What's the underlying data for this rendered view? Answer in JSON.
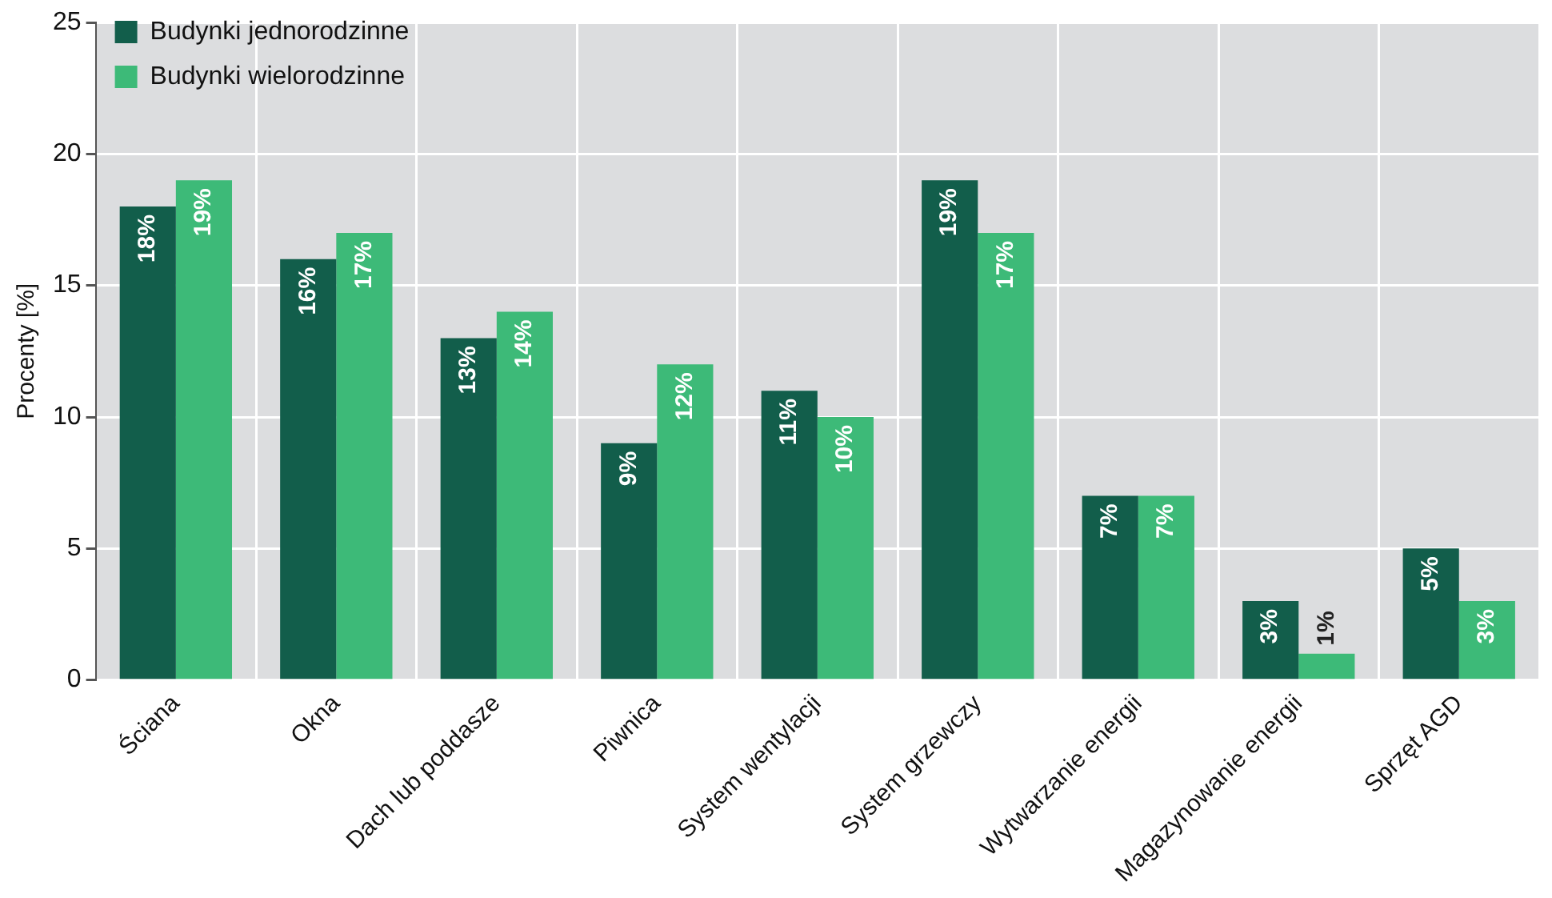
{
  "chart_data": {
    "type": "bar",
    "ylabel": "Procenty [%]",
    "categories": [
      "Ściana",
      "Okna",
      "Dach lub poddasze",
      "Piwnica",
      "System wentylacji",
      "System grzewczy",
      "Wytwarzanie energii",
      "Magazynowanie energii",
      "Sprzęt AGD"
    ],
    "series": [
      {
        "name": "Budynki jednorodzinne",
        "color": "#125e4b",
        "values": [
          18,
          16,
          13,
          9,
          11,
          19,
          7,
          3,
          5
        ],
        "value_labels": [
          "18%",
          "16%",
          "13%",
          "9%",
          "11%",
          "19%",
          "7%",
          "3%",
          "5%"
        ]
      },
      {
        "name": "Budynki wielorodzinne",
        "color": "#3dba78",
        "values": [
          19,
          17,
          14,
          12,
          10,
          17,
          7,
          1,
          3
        ],
        "value_labels": [
          "19%",
          "17%",
          "14%",
          "12%",
          "10%",
          "17%",
          "7%",
          "1%",
          "3%"
        ]
      }
    ],
    "ylim": [
      0,
      25
    ],
    "yticks": [
      0,
      5,
      10,
      15,
      20,
      25
    ],
    "grid": true,
    "legend": "top left"
  }
}
